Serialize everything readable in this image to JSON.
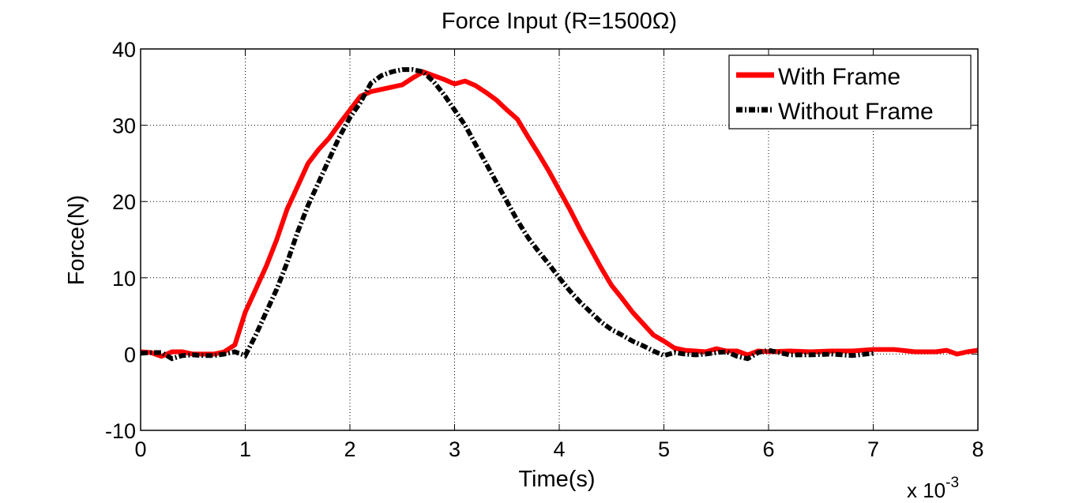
{
  "chart_data": {
    "type": "line",
    "title": "Force Input (R=1500Ω)",
    "xlabel": "Time(s)",
    "ylabel": "Force(N)",
    "x_multiplier_label": "x 10",
    "x_multiplier_exponent": "-3",
    "xlim": [
      0,
      8
    ],
    "ylim": [
      -10,
      40
    ],
    "xticks": [
      "0",
      "1",
      "2",
      "3",
      "4",
      "5",
      "6",
      "7",
      "8"
    ],
    "yticks": [
      "-10",
      "0",
      "10",
      "20",
      "30",
      "40"
    ],
    "grid": true,
    "legend_position": "top-right",
    "series": [
      {
        "name": "With Frame",
        "color": "#ff0000",
        "style": "solid",
        "x": [
          0,
          0.1,
          0.2,
          0.3,
          0.4,
          0.5,
          0.6,
          0.7,
          0.8,
          0.9,
          1.0,
          1.1,
          1.2,
          1.3,
          1.4,
          1.5,
          1.6,
          1.7,
          1.8,
          1.9,
          2.0,
          2.1,
          2.2,
          2.3,
          2.4,
          2.5,
          2.6,
          2.7,
          2.8,
          2.9,
          3.0,
          3.1,
          3.2,
          3.3,
          3.4,
          3.5,
          3.6,
          3.7,
          3.8,
          3.9,
          4.0,
          4.1,
          4.2,
          4.3,
          4.4,
          4.5,
          4.6,
          4.7,
          4.8,
          4.9,
          5.0,
          5.1,
          5.2,
          5.3,
          5.4,
          5.5,
          5.6,
          5.7,
          5.8,
          5.9,
          6.0,
          6.2,
          6.4,
          6.6,
          6.8,
          7.0,
          7.2,
          7.4,
          7.6,
          7.7,
          7.8,
          7.9,
          8.0
        ],
        "y": [
          0.3,
          0.2,
          -0.3,
          0.3,
          0.3,
          0,
          0,
          0,
          0.3,
          1.2,
          5.5,
          8.5,
          11.5,
          15,
          19,
          22,
          25,
          26.8,
          28.3,
          30.2,
          32,
          33.8,
          34.4,
          34.7,
          35,
          35.3,
          36.2,
          37,
          36.5,
          36,
          35.4,
          35.8,
          35.2,
          34.3,
          33.3,
          32,
          30.8,
          28.5,
          26.3,
          24,
          21.5,
          19,
          16.3,
          13.8,
          11.3,
          9,
          7.3,
          5.5,
          4,
          2.5,
          1.7,
          0.8,
          0.5,
          0.4,
          0.3,
          0.7,
          0.4,
          0.4,
          -0.1,
          0.4,
          0.3,
          0.4,
          0.3,
          0.4,
          0.4,
          0.6,
          0.6,
          0.3,
          0.3,
          0.5,
          0,
          0.3,
          0.5
        ]
      },
      {
        "name": "Without Frame",
        "color": "#000000",
        "style": "dash-dot",
        "x": [
          0,
          0.1,
          0.2,
          0.3,
          0.4,
          0.5,
          0.6,
          0.7,
          0.8,
          0.9,
          1.0,
          1.1,
          1.2,
          1.3,
          1.4,
          1.5,
          1.6,
          1.7,
          1.8,
          1.9,
          2.0,
          2.1,
          2.2,
          2.3,
          2.4,
          2.5,
          2.6,
          2.7,
          2.8,
          2.9,
          3.0,
          3.1,
          3.2,
          3.3,
          3.4,
          3.5,
          3.6,
          3.7,
          3.8,
          3.9,
          4.0,
          4.1,
          4.2,
          4.3,
          4.4,
          4.5,
          4.6,
          4.7,
          4.8,
          4.9,
          5.0,
          5.1,
          5.2,
          5.3,
          5.4,
          5.5,
          5.6,
          5.7,
          5.8,
          5.9,
          6.0,
          6.1,
          6.2,
          6.4,
          6.6,
          6.8,
          7.0
        ],
        "y": [
          0.1,
          0.2,
          0.2,
          -0.6,
          -0.2,
          -0.1,
          -0.2,
          -0.2,
          0,
          0.3,
          -0.2,
          2.5,
          5.5,
          8.5,
          12,
          16,
          19.5,
          22.5,
          25.5,
          28.5,
          31,
          33,
          35.5,
          36.5,
          37,
          37.3,
          37.3,
          37,
          35.7,
          34,
          32,
          30,
          27.5,
          25,
          22.5,
          20,
          17.5,
          15.3,
          13.5,
          11.8,
          10,
          8.3,
          6.8,
          5.5,
          4.2,
          3.2,
          2.5,
          1.7,
          1.1,
          0.4,
          -0.2,
          0.2,
          0,
          -0.1,
          0,
          0.2,
          0.3,
          -0.3,
          -0.6,
          0.2,
          0.5,
          0.2,
          -0.1,
          -0.1,
          0,
          -0.2,
          0.1
        ]
      }
    ]
  }
}
